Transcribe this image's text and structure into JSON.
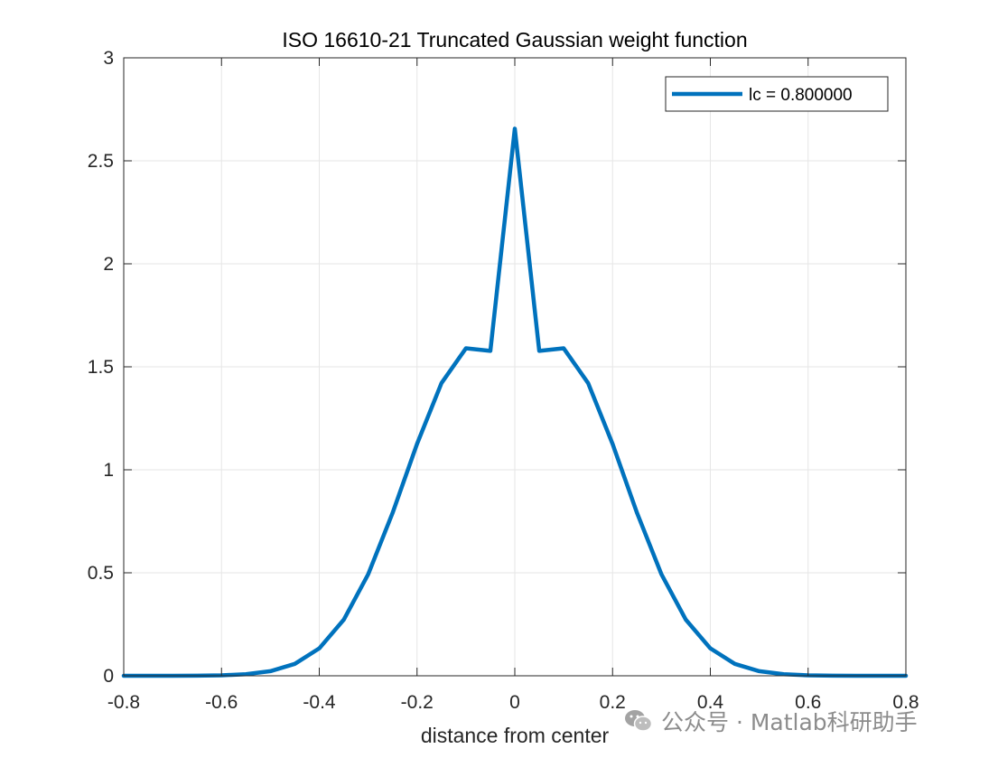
{
  "chart_data": {
    "type": "line",
    "title": "ISO 16610-21 Truncated Gaussian weight function",
    "xlabel": "distance from center",
    "ylabel": "",
    "xlim": [
      -0.8,
      0.8
    ],
    "ylim": [
      0,
      3
    ],
    "grid": true,
    "legend_position": "top-right",
    "xticks": [
      -0.8,
      -0.6,
      -0.4,
      -0.2,
      0,
      0.2,
      0.4,
      0.6,
      0.8
    ],
    "xtick_labels": [
      "-0.8",
      "-0.6",
      "-0.4",
      "-0.2",
      "0",
      "0.2",
      "0.4",
      "0.6",
      "0.8"
    ],
    "yticks": [
      0,
      0.5,
      1,
      1.5,
      2,
      2.5,
      3
    ],
    "ytick_labels": [
      "0",
      "0.5",
      "1",
      "1.5",
      "2",
      "2.5",
      "3"
    ],
    "series": [
      {
        "name": "lc = 0.800000",
        "color": "#0072BD",
        "x": [
          -0.8,
          -0.75,
          -0.7,
          -0.65,
          -0.6,
          -0.55,
          -0.5,
          -0.45,
          -0.4,
          -0.35,
          -0.3,
          -0.25,
          -0.2,
          -0.15,
          -0.1,
          -0.05,
          0,
          0.05,
          0.1,
          0.15,
          0.2,
          0.25,
          0.3,
          0.35,
          0.4,
          0.45,
          0.5,
          0.55,
          0.6,
          0.65,
          0.7,
          0.75,
          0.8
        ],
        "y": [
          0.0,
          0.0,
          0.0002,
          0.0007,
          0.0024,
          0.0076,
          0.0223,
          0.0578,
          0.1331,
          0.2719,
          0.4924,
          0.7908,
          1.1256,
          1.4207,
          1.5898,
          1.5771,
          2.656,
          1.5771,
          1.5898,
          1.4207,
          1.1256,
          0.7908,
          0.4924,
          0.2719,
          0.1331,
          0.0578,
          0.0223,
          0.0076,
          0.0024,
          0.0007,
          0.0002,
          0.0,
          0.0
        ]
      }
    ]
  },
  "watermark": {
    "icon": "wechat-icon",
    "text": "公众号 · Matlab科研助手"
  }
}
